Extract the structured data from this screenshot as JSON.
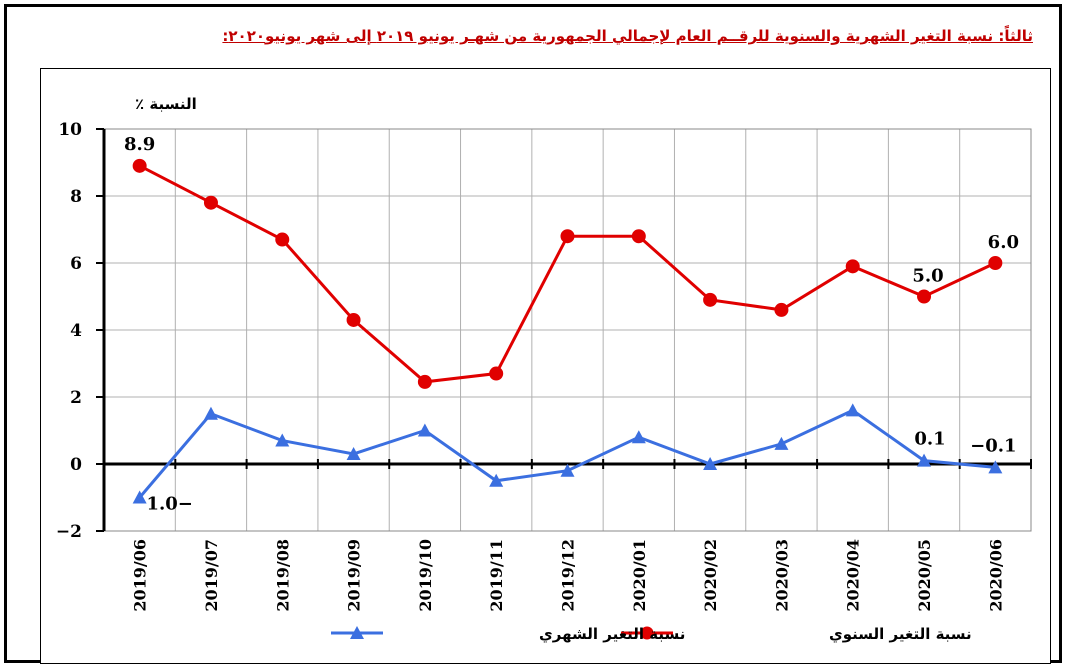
{
  "heading": "ثالثاً: نسبة التغير الشهرية والسنوية للرقــم العام لإجمالي الجمهورية من شهـر يونيو ٢٠١٩ إلى شهر يونيو٢٠٢٠:",
  "chart_data": {
    "type": "line",
    "ylabel": "النسبة ٪",
    "ylim": [
      -2,
      10
    ],
    "yticks": [
      "-2",
      "0",
      "2",
      "4",
      "6",
      "8",
      "10"
    ],
    "categories": [
      "2019/06",
      "2019/07",
      "2019/08",
      "2019/09",
      "2019/10",
      "2019/11",
      "2019/12",
      "2020/01",
      "2020/02",
      "2020/03",
      "2020/04",
      "2020/05",
      "2020/06"
    ],
    "grid": true,
    "legend_position": "bottom",
    "series": [
      {
        "name": "نسبة التغير السنوي",
        "color": "#e00000",
        "marker": "circle",
        "values": [
          8.9,
          7.8,
          6.7,
          4.3,
          2.45,
          2.7,
          6.8,
          6.8,
          4.9,
          4.6,
          5.9,
          5.0,
          6.0
        ]
      },
      {
        "name": "نسبة التغير الشهري",
        "color": "#3b6fe0",
        "marker": "triangle",
        "values": [
          -1.0,
          1.5,
          0.7,
          0.3,
          1.0,
          -0.5,
          -0.2,
          0.8,
          0.0,
          0.6,
          1.6,
          0.1,
          -0.1
        ]
      }
    ],
    "data_labels": [
      {
        "series": 0,
        "index": 0,
        "text": "8.9"
      },
      {
        "series": 0,
        "index": 11,
        "text": "5.0"
      },
      {
        "series": 0,
        "index": 12,
        "text": "6.0"
      },
      {
        "series": 1,
        "index": 0,
        "text": "1.0−"
      },
      {
        "series": 1,
        "index": 11,
        "text": "0.1"
      },
      {
        "series": 1,
        "index": 12,
        "text": "−0.1"
      }
    ]
  }
}
